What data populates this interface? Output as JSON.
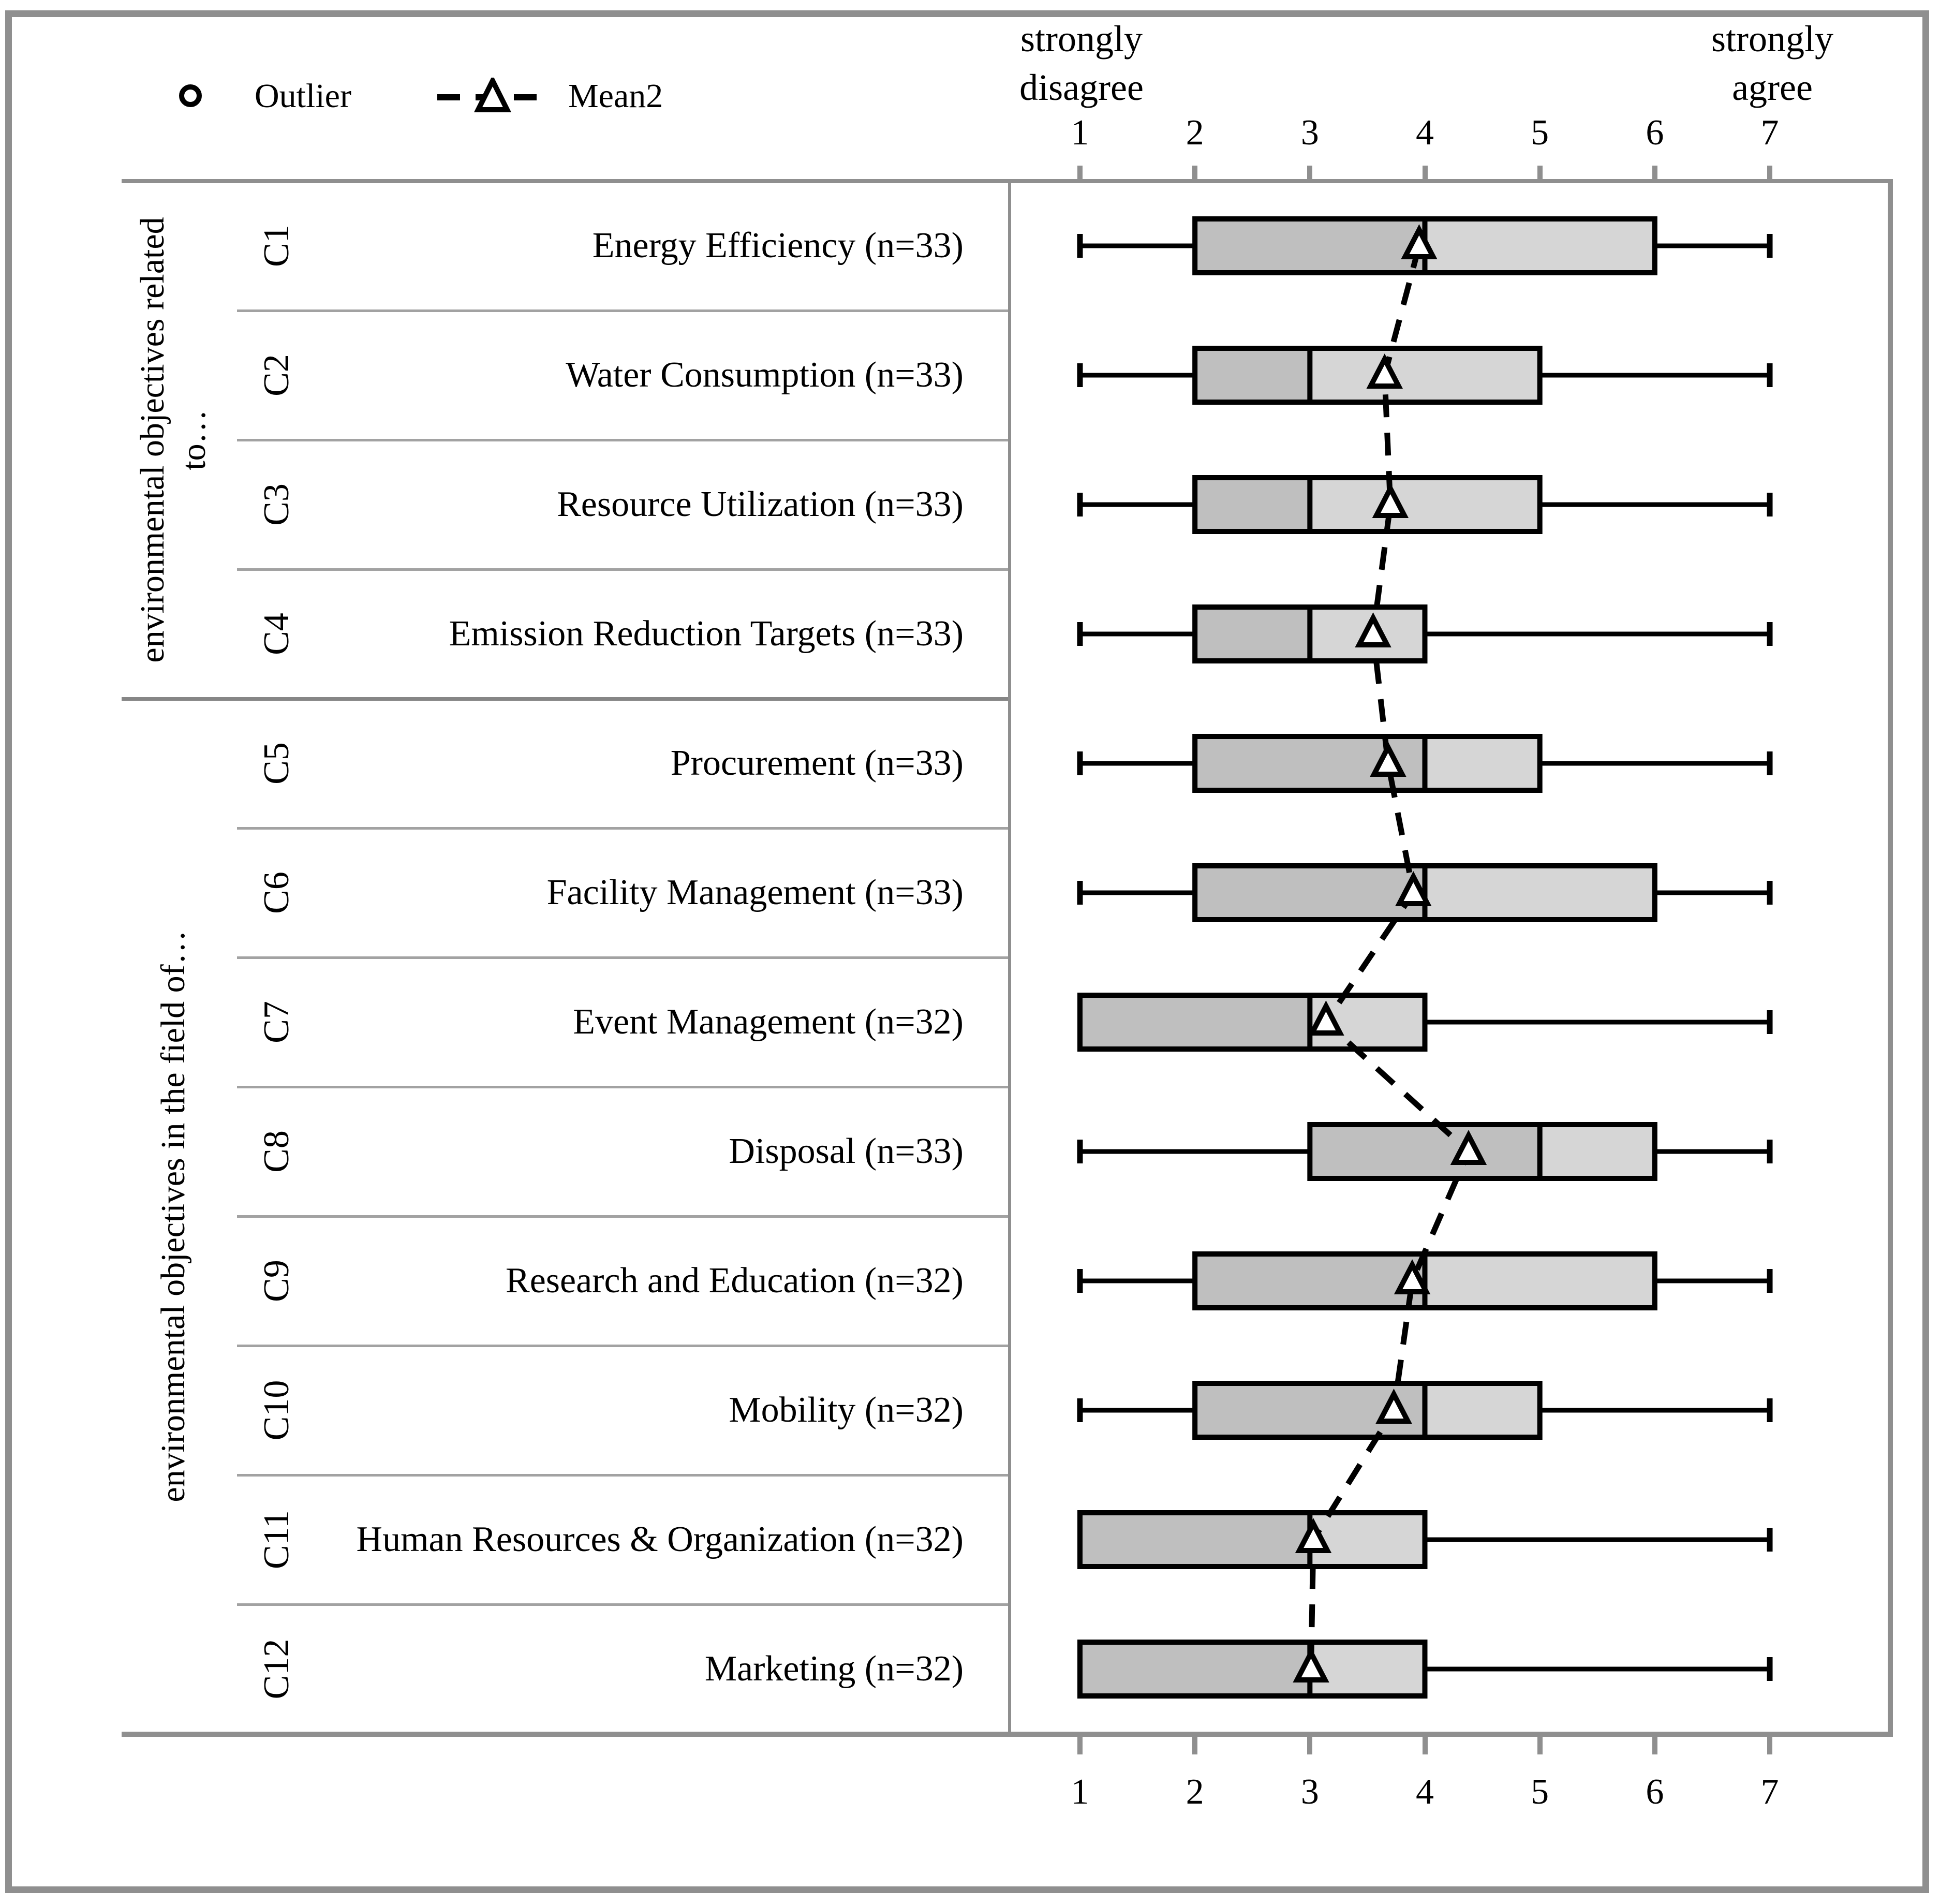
{
  "legend": {
    "outlier": "Outlier",
    "mean": "Mean2"
  },
  "axis": {
    "left_label_lines": [
      "strongly",
      "disagree"
    ],
    "right_label_lines": [
      "strongly",
      "agree"
    ],
    "ticks": [
      "1",
      "2",
      "3",
      "4",
      "5",
      "6",
      "7"
    ]
  },
  "groups": [
    {
      "label_lines": [
        "environmental objectives related",
        "to…"
      ],
      "first_row": 1,
      "last_row": 4
    },
    {
      "label_lines": [
        "environmental objectives in the field of…"
      ],
      "first_row": 5,
      "last_row": 12
    }
  ],
  "chart_data": {
    "type": "boxplot",
    "orientation": "horizontal",
    "value_axis": {
      "min": 1,
      "max": 7,
      "ticks": [
        1,
        2,
        3,
        4,
        5,
        6,
        7
      ],
      "low_anchor": "strongly disagree",
      "high_anchor": "strongly agree"
    },
    "legend": [
      {
        "symbol": "circle",
        "label": "Outlier"
      },
      {
        "symbol": "dashed-line-with-triangle",
        "label": "Mean2"
      }
    ],
    "rows": [
      {
        "code": "C1",
        "label": "Energy Efficiency (n=33)",
        "n": 33,
        "whisker_low": 1,
        "q1": 2,
        "median": 4,
        "q3": 6,
        "whisker_high": 7,
        "mean": 3.95,
        "outliers": []
      },
      {
        "code": "C2",
        "label": "Water Consumption (n=33)",
        "n": 33,
        "whisker_low": 1,
        "q1": 2,
        "median": 3,
        "q3": 5,
        "whisker_high": 7,
        "mean": 3.65,
        "outliers": []
      },
      {
        "code": "C3",
        "label": "Resource Utilization (n=33)",
        "n": 33,
        "whisker_low": 1,
        "q1": 2,
        "median": 3,
        "q3": 5,
        "whisker_high": 7,
        "mean": 3.7,
        "outliers": []
      },
      {
        "code": "C4",
        "label": "Emission Reduction Targets (n=33)",
        "n": 33,
        "whisker_low": 1,
        "q1": 2,
        "median": 3,
        "q3": 4,
        "whisker_high": 7,
        "mean": 3.55,
        "outliers": []
      },
      {
        "code": "C5",
        "label": "Procurement (n=33)",
        "n": 33,
        "whisker_low": 1,
        "q1": 2,
        "median": 4,
        "q3": 5,
        "whisker_high": 7,
        "mean": 3.68,
        "outliers": []
      },
      {
        "code": "C6",
        "label": "Facility Management (n=33)",
        "n": 33,
        "whisker_low": 1,
        "q1": 2,
        "median": 4,
        "q3": 6,
        "whisker_high": 7,
        "mean": 3.9,
        "outliers": []
      },
      {
        "code": "C7",
        "label": "Event Management (n=32)",
        "n": 32,
        "whisker_low": 1,
        "q1": 1,
        "median": 3,
        "q3": 4,
        "whisker_high": 7,
        "mean": 3.14,
        "outliers": []
      },
      {
        "code": "C8",
        "label": "Disposal (n=33)",
        "n": 33,
        "whisker_low": 1,
        "q1": 3,
        "median": 5,
        "q3": 6,
        "whisker_high": 7,
        "mean": 4.38,
        "outliers": []
      },
      {
        "code": "C9",
        "label": "Research and Education (n=32)",
        "n": 32,
        "whisker_low": 1,
        "q1": 2,
        "median": 4,
        "q3": 6,
        "whisker_high": 7,
        "mean": 3.89,
        "outliers": []
      },
      {
        "code": "C10",
        "label": "Mobility (n=32)",
        "n": 32,
        "whisker_low": 1,
        "q1": 2,
        "median": 4,
        "q3": 5,
        "whisker_high": 7,
        "mean": 3.73,
        "outliers": []
      },
      {
        "code": "C11",
        "label": "Human Resources & Organization (n=32)",
        "n": 32,
        "whisker_low": 1,
        "q1": 1,
        "median": 3,
        "q3": 4,
        "whisker_high": 7,
        "mean": 3.03,
        "outliers": []
      },
      {
        "code": "C12",
        "label": "Marketing (n=32)",
        "n": 32,
        "whisker_low": 1,
        "q1": 1,
        "median": 3,
        "q3": 4,
        "whisker_high": 7,
        "mean": 3.01,
        "outliers": []
      }
    ]
  },
  "colors": {
    "box_dark": "#bfbfbf",
    "box_light": "#d6d6d6",
    "frame_gray": "#8f8f8f",
    "row_divider": "#a2a2a2",
    "group_divider": "#868686",
    "stroke": "#000000",
    "background": "#ffffff"
  }
}
